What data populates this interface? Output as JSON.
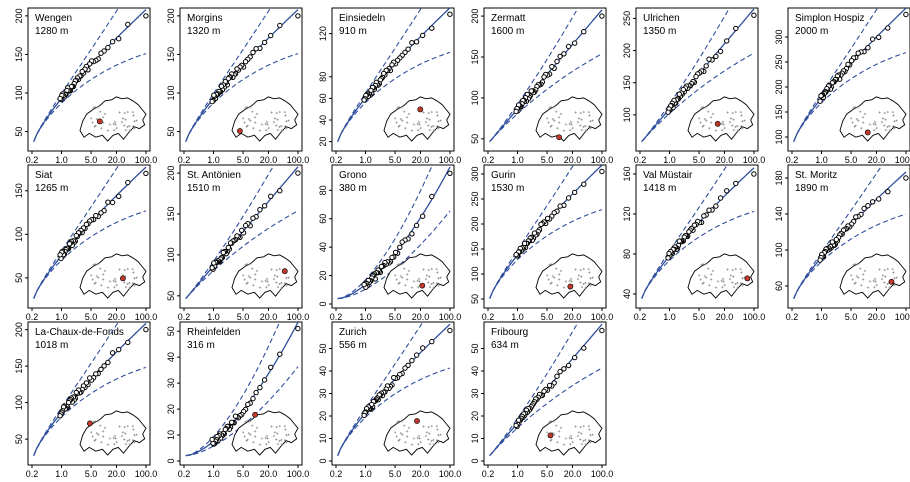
{
  "figure": {
    "style": {
      "point_stroke": "#000000",
      "fit_line": "#2f4e9c",
      "map_marker": "#c0392b",
      "frame": "#000000"
    },
    "x_ticks": [
      "0.2",
      "1.0",
      "5.0",
      "20.0",
      "100.0"
    ],
    "x_tick_values": [
      0.2,
      1.0,
      5.0,
      20.0,
      100.0
    ],
    "x_scale": "log"
  },
  "chart_data": [
    {
      "type": "scatter",
      "title": "Wengen",
      "subtitle": "1280 m",
      "x_scale": "log",
      "xlim": [
        0.2,
        100
      ],
      "ylim": [
        30,
        205
      ],
      "y_ticks": [
        50,
        100,
        150,
        200
      ],
      "shape": "concave",
      "points": 40,
      "max_point": 200,
      "map_marker": [
        0.3,
        0.55
      ],
      "x_tick_labels": true
    },
    {
      "type": "scatter",
      "title": "Morgins",
      "subtitle": "1320 m",
      "x_scale": "log",
      "xlim": [
        0.2,
        100
      ],
      "ylim": [
        30,
        205
      ],
      "y_ticks": [
        50,
        100,
        150,
        200
      ],
      "shape": "concave",
      "points": 40,
      "max_point": 200,
      "map_marker": [
        0.12,
        0.75
      ],
      "x_tick_labels": true
    },
    {
      "type": "scatter",
      "title": "Einsiedeln",
      "subtitle": "910 m",
      "x_scale": "log",
      "xlim": [
        0.2,
        100
      ],
      "ylim": [
        15,
        140
      ],
      "y_ticks": [
        20,
        40,
        60,
        80,
        120
      ],
      "shape": "concave",
      "points": 40,
      "max_point": 138,
      "map_marker": [
        0.55,
        0.3
      ],
      "x_tick_labels": true
    },
    {
      "type": "scatter",
      "title": "Zermatt",
      "subtitle": "1600 m",
      "x_scale": "log",
      "xlim": [
        0.2,
        100
      ],
      "ylim": [
        40,
        205
      ],
      "y_ticks": [
        50,
        100,
        150,
        200
      ],
      "shape": "linear",
      "points": 40,
      "max_point": 200,
      "map_marker": [
        0.35,
        0.88
      ],
      "x_tick_labels": true
    },
    {
      "type": "scatter",
      "title": "Ulrichen",
      "subtitle": "1350 m",
      "x_scale": "log",
      "xlim": [
        0.2,
        100
      ],
      "ylim": [
        50,
        260
      ],
      "y_ticks": [
        100,
        150,
        200,
        250
      ],
      "shape": "linear",
      "points": 40,
      "max_point": 255,
      "map_marker": [
        0.45,
        0.6
      ],
      "x_tick_labels": true
    },
    {
      "type": "scatter",
      "title": "Simplon Hospiz",
      "subtitle": "2000 m",
      "x_scale": "log",
      "xlim": [
        0.2,
        100
      ],
      "ylim": [
        80,
        350
      ],
      "y_ticks": [
        100,
        150,
        200,
        250,
        300
      ],
      "shape": "concave",
      "points": 40,
      "max_point": 345,
      "map_marker": [
        0.42,
        0.78
      ],
      "x_tick_labels": true
    },
    {
      "type": "scatter",
      "title": "Siat",
      "subtitle": "1265 m",
      "x_scale": "log",
      "xlim": [
        0.2,
        100
      ],
      "ylim": [
        20,
        175
      ],
      "y_ticks": [
        50,
        100,
        150
      ],
      "shape": "concave",
      "points": 40,
      "max_point": 170,
      "map_marker": [
        0.65,
        0.55
      ],
      "x_tick_labels": true
    },
    {
      "type": "scatter",
      "title": "St. Antönien",
      "subtitle": "1510 m",
      "x_scale": "log",
      "xlim": [
        0.2,
        100
      ],
      "ylim": [
        40,
        205
      ],
      "y_ticks": [
        50,
        100,
        150,
        200
      ],
      "shape": "linear",
      "points": 40,
      "max_point": 200,
      "map_marker": [
        0.8,
        0.4
      ],
      "x_tick_labels": true
    },
    {
      "type": "scatter",
      "title": "Grono",
      "subtitle": "380 m",
      "x_scale": "log",
      "xlim": [
        0.2,
        100
      ],
      "ylim": [
        0,
        95
      ],
      "y_ticks": [
        0,
        20,
        40,
        60,
        80
      ],
      "shape": "convex",
      "points": 40,
      "max_point": 92,
      "map_marker": [
        0.58,
        0.7
      ],
      "x_tick_labels": true
    },
    {
      "type": "scatter",
      "title": "Gurin",
      "subtitle": "1530 m",
      "x_scale": "log",
      "xlim": [
        0.2,
        100
      ],
      "ylim": [
        40,
        310
      ],
      "y_ticks": [
        50,
        100,
        150,
        200,
        250,
        300
      ],
      "shape": "concave",
      "points": 40,
      "max_point": 305,
      "map_marker": [
        0.52,
        0.72
      ],
      "x_tick_labels": true
    },
    {
      "type": "scatter",
      "title": "Val Müstair",
      "subtitle": "1418 m",
      "x_scale": "log",
      "xlim": [
        0.2,
        100
      ],
      "ylim": [
        30,
        165
      ],
      "y_ticks": [
        40,
        80,
        120,
        160
      ],
      "shape": "concave",
      "points": 40,
      "max_point": 160,
      "map_marker": [
        0.9,
        0.55
      ],
      "x_tick_labels": true
    },
    {
      "type": "scatter",
      "title": "St. Moritz",
      "subtitle": "1890 m",
      "x_scale": "log",
      "xlim": [
        0.2,
        100
      ],
      "ylim": [
        40,
        190
      ],
      "y_ticks": [
        60,
        100,
        140,
        180
      ],
      "shape": "concave",
      "points": 40,
      "max_point": 180,
      "map_marker": [
        0.78,
        0.62
      ],
      "x_tick_labels": true
    },
    {
      "type": "scatter",
      "title": "La-Chaux-de-Fonds",
      "subtitle": "1018 m",
      "x_scale": "log",
      "xlim": [
        0.2,
        100
      ],
      "ylim": [
        20,
        205
      ],
      "y_ticks": [
        50,
        100,
        150,
        200
      ],
      "shape": "concave",
      "points": 40,
      "max_point": 200,
      "map_marker": [
        0.15,
        0.3
      ],
      "x_tick_labels": true
    },
    {
      "type": "scatter",
      "title": "Rheinfelden",
      "subtitle": "316 m",
      "x_scale": "log",
      "xlim": [
        0.2,
        100
      ],
      "ylim": [
        0,
        52
      ],
      "y_ticks": [
        0,
        10,
        20,
        30,
        40,
        50
      ],
      "shape": "convex",
      "points": 40,
      "max_point": 51,
      "map_marker": [
        0.35,
        0.12
      ],
      "x_tick_labels": true
    },
    {
      "type": "scatter",
      "title": "Zurich",
      "subtitle": "556 m",
      "x_scale": "log",
      "xlim": [
        0.2,
        100
      ],
      "ylim": [
        0,
        60
      ],
      "y_ticks": [
        0,
        10,
        20,
        30,
        40,
        50
      ],
      "shape": "concave",
      "points": 40,
      "max_point": 58,
      "map_marker": [
        0.5,
        0.25
      ],
      "x_tick_labels": true
    },
    {
      "type": "scatter",
      "title": "Fribourg",
      "subtitle": "634 m",
      "x_scale": "log",
      "xlim": [
        0.2,
        100
      ],
      "ylim": [
        0,
        60
      ],
      "y_ticks": [
        0,
        10,
        20,
        30,
        40,
        50
      ],
      "shape": "linear",
      "points": 40,
      "max_point": 58,
      "map_marker": [
        0.22,
        0.55
      ],
      "x_tick_labels": true
    }
  ]
}
